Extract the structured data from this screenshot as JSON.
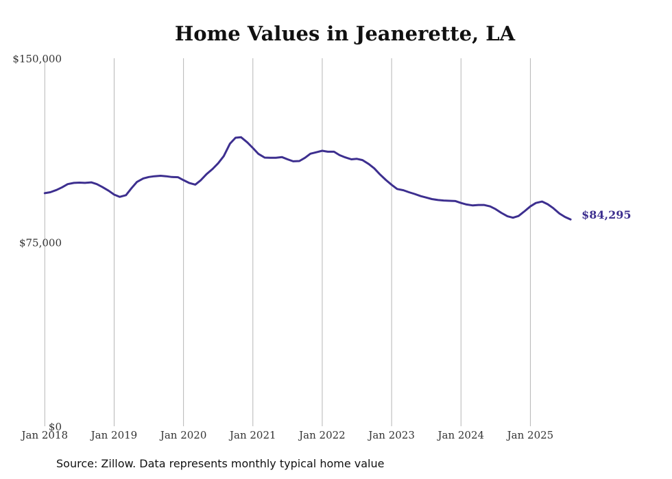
{
  "chart_data": {
    "type": "line",
    "title": "Home Values in Jeanerette, LA",
    "xlabel": "",
    "ylabel": "",
    "ylim": [
      0,
      150000
    ],
    "yticks": [
      {
        "value": 0,
        "label": "$0"
      },
      {
        "value": 75000,
        "label": "$75,000"
      },
      {
        "value": 150000,
        "label": "$150,000"
      }
    ],
    "xticks": [
      {
        "value": 2018.0,
        "label": "Jan 2018"
      },
      {
        "value": 2019.0,
        "label": "Jan 2019"
      },
      {
        "value": 2020.0,
        "label": "Jan 2020"
      },
      {
        "value": 2021.0,
        "label": "Jan 2021"
      },
      {
        "value": 2022.0,
        "label": "Jan 2022"
      },
      {
        "value": 2023.0,
        "label": "Jan 2023"
      },
      {
        "value": 2024.0,
        "label": "Jan 2024"
      },
      {
        "value": 2025.0,
        "label": "Jan 2025"
      }
    ],
    "xlim": [
      2017.75,
      2026.35
    ],
    "grid": "vertical",
    "line_color": "#3d2f8f",
    "end_label": "$84,295",
    "series": [
      {
        "x": [
          2018.0,
          2018.08,
          2018.17,
          2018.25,
          2018.33,
          2018.42,
          2018.5,
          2018.58,
          2018.67,
          2018.75,
          2018.83,
          2018.92,
          2019.0,
          2019.08,
          2019.17,
          2019.25,
          2019.33,
          2019.42,
          2019.5,
          2019.58,
          2019.67,
          2019.75,
          2019.83,
          2019.92,
          2020.0,
          2020.08,
          2020.17,
          2020.25,
          2020.33,
          2020.42,
          2020.5,
          2020.58,
          2020.67,
          2020.75,
          2020.83,
          2020.92,
          2021.0,
          2021.08,
          2021.17,
          2021.25,
          2021.33,
          2021.42,
          2021.5,
          2021.58,
          2021.67,
          2021.75,
          2021.83,
          2021.92,
          2022.0,
          2022.08,
          2022.17,
          2022.25,
          2022.33,
          2022.42,
          2022.5,
          2022.58,
          2022.67,
          2022.75,
          2022.83,
          2022.92,
          2023.0,
          2023.08,
          2023.17,
          2023.25,
          2023.33,
          2023.42,
          2023.5,
          2023.58,
          2023.67,
          2023.75,
          2023.83,
          2023.92,
          2024.0,
          2024.08,
          2024.17,
          2024.25,
          2024.33,
          2024.42,
          2024.5,
          2024.58,
          2024.67,
          2024.75,
          2024.83,
          2024.92,
          2025.0,
          2025.08,
          2025.17,
          2025.25,
          2025.33,
          2025.42,
          2025.5,
          2025.58
        ],
        "y": [
          95000,
          95400,
          96300,
          97400,
          98700,
          99200,
          99300,
          99200,
          99400,
          98700,
          97500,
          96000,
          94400,
          93500,
          94200,
          97000,
          99600,
          101000,
          101600,
          101900,
          102100,
          101900,
          101600,
          101500,
          100300,
          99200,
          98500,
          100300,
          102700,
          104900,
          107200,
          110100,
          115200,
          117600,
          117800,
          115700,
          113400,
          111000,
          109500,
          109400,
          109400,
          109700,
          108800,
          108000,
          108100,
          109400,
          111100,
          111700,
          112300,
          111900,
          111900,
          110500,
          109600,
          108800,
          109000,
          108500,
          106900,
          105100,
          102700,
          100300,
          98400,
          96700,
          96200,
          95400,
          94700,
          93800,
          93200,
          92600,
          92200,
          92000,
          91900,
          91800,
          91000,
          90400,
          90000,
          90200,
          90200,
          89600,
          88500,
          87000,
          85600,
          85000,
          85700,
          87700,
          89600,
          91000,
          91600,
          90500,
          88900,
          86700,
          85300,
          84295
        ]
      }
    ]
  },
  "source_note": "Source: Zillow. Data represents monthly typical home value"
}
